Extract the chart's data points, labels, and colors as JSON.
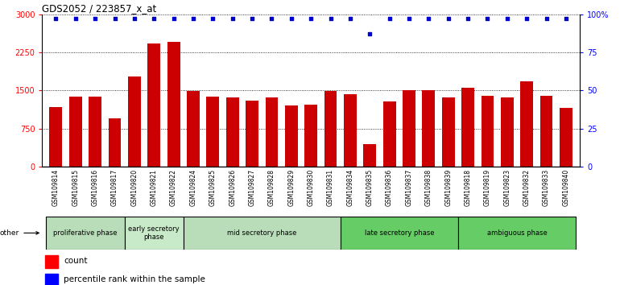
{
  "title": "GDS2052 / 223857_x_at",
  "samples": [
    "GSM109814",
    "GSM109815",
    "GSM109816",
    "GSM109817",
    "GSM109820",
    "GSM109821",
    "GSM109822",
    "GSM109824",
    "GSM109825",
    "GSM109826",
    "GSM109827",
    "GSM109828",
    "GSM109829",
    "GSM109830",
    "GSM109831",
    "GSM109834",
    "GSM109835",
    "GSM109836",
    "GSM109837",
    "GSM109838",
    "GSM109839",
    "GSM109818",
    "GSM109819",
    "GSM109823",
    "GSM109832",
    "GSM109833",
    "GSM109840"
  ],
  "counts": [
    1180,
    1380,
    1380,
    950,
    1780,
    2420,
    2450,
    1490,
    1380,
    1370,
    1300,
    1370,
    1200,
    1220,
    1490,
    1430,
    450,
    1290,
    1510,
    1510,
    1370,
    1550,
    1400,
    1360,
    1680,
    1390,
    1150
  ],
  "percentiles": [
    97,
    97,
    97,
    97,
    97,
    97,
    97,
    97,
    97,
    97,
    97,
    97,
    97,
    97,
    97,
    97,
    87,
    97,
    97,
    97,
    97,
    97,
    97,
    97,
    97,
    97,
    97
  ],
  "bar_color": "#cc0000",
  "dot_color": "#0000cc",
  "ylim_left": [
    0,
    3000
  ],
  "ylim_right": [
    0,
    100
  ],
  "yticks_left": [
    0,
    750,
    1500,
    2250,
    3000
  ],
  "yticks_right": [
    0,
    25,
    50,
    75,
    100
  ],
  "ytick_right_labels": [
    "0",
    "25",
    "50",
    "75",
    "100%"
  ],
  "phases": [
    {
      "label": "proliferative phase",
      "start": 0,
      "end": 4,
      "color": "#b8ddb8"
    },
    {
      "label": "early secretory\nphase",
      "start": 4,
      "end": 7,
      "color": "#c8eac8"
    },
    {
      "label": "mid secretory phase",
      "start": 7,
      "end": 15,
      "color": "#b8ddb8"
    },
    {
      "label": "late secretory phase",
      "start": 15,
      "end": 21,
      "color": "#66cc66"
    },
    {
      "label": "ambiguous phase",
      "start": 21,
      "end": 27,
      "color": "#66cc66"
    }
  ],
  "other_label": "other",
  "legend_count": "count",
  "legend_percentile": "percentile rank within the sample",
  "xticklabel_bg": "#cccccc",
  "spine_color": "#000000"
}
